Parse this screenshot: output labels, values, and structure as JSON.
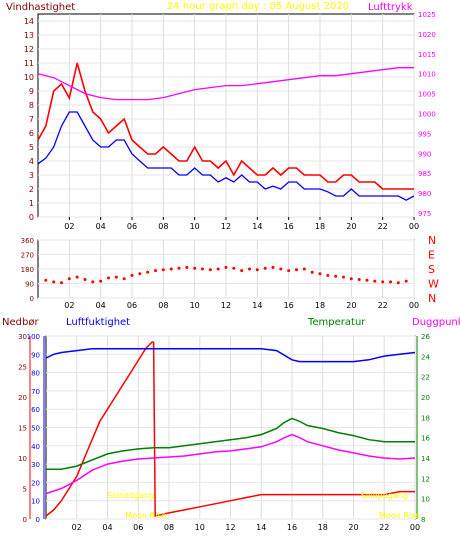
{
  "header": {
    "title": "24 hour graph day : 05 August 2020",
    "left_label": "Vindhastighet",
    "right_label": "Lufttrykk"
  },
  "colors": {
    "wind": "#ff0000",
    "pressure": "#ff00ff",
    "wind_avg": "#0000ff",
    "grid_bg": "#ffffff",
    "title": "#ffff00",
    "axis_left": "#800000",
    "direction": "#ff0000",
    "temperature": "#008000",
    "dewpoint": "#ff00ff",
    "humidity": "#0000ff",
    "rain": "#ff0000",
    "rain_axis": "#ff0000",
    "humidity_axis": "#0000ff",
    "temp_axis": "#008000",
    "annotation": "#ffff00"
  },
  "chart_data": [
    {
      "type": "line",
      "title": "24 hour graph day : 05 August 2020",
      "x_ticks": [
        "02",
        "04",
        "06",
        "08",
        "10",
        "12",
        "14",
        "16",
        "18",
        "20",
        "22",
        "00"
      ],
      "x_range_hours": [
        0,
        24
      ],
      "y_left": {
        "label": "Vindhastighet",
        "range": [
          0,
          14.5
        ],
        "ticks": [
          "0",
          "1",
          "2",
          "3",
          "4",
          "5",
          "6",
          "7",
          "8",
          "9",
          "10",
          "11",
          "12",
          "13",
          "14"
        ]
      },
      "y_right": {
        "label": "Lufttrykk",
        "range": [
          974,
          1025
        ],
        "ticks": [
          "975",
          "980",
          "985",
          "990",
          "995",
          "1000",
          "1005",
          "1010",
          "1015",
          "1020",
          "1025"
        ]
      },
      "series": [
        {
          "name": "Vindhastighet",
          "axis": "left",
          "x": [
            0,
            0.5,
            1,
            1.5,
            2,
            2.5,
            3,
            3.5,
            4,
            4.5,
            5,
            5.5,
            6,
            6.5,
            7,
            7.5,
            8,
            8.5,
            9,
            9.5,
            10,
            10.5,
            11,
            11.5,
            12,
            12.5,
            13,
            13.5,
            14,
            14.5,
            15,
            15.5,
            16,
            16.5,
            17,
            17.5,
            18,
            18.5,
            19,
            19.5,
            20,
            20.5,
            21,
            21.5,
            22,
            22.5,
            23,
            23.5,
            24
          ],
          "y": [
            5.5,
            6.5,
            9.0,
            9.5,
            8.5,
            11.0,
            9.0,
            7.5,
            7.0,
            6.0,
            6.5,
            7.0,
            5.5,
            5.0,
            4.5,
            4.5,
            5.0,
            4.5,
            4.0,
            4.0,
            5.0,
            4.0,
            4.0,
            3.5,
            4.0,
            3.0,
            4.0,
            3.5,
            3.0,
            3.0,
            3.5,
            3.0,
            3.5,
            3.5,
            3.0,
            3.0,
            3.0,
            2.5,
            2.5,
            3.0,
            3.0,
            2.5,
            2.5,
            2.5,
            2.0,
            2.0,
            2.0,
            2.0,
            2.0
          ]
        },
        {
          "name": "Average",
          "axis": "left",
          "x": [
            0,
            0.5,
            1,
            1.5,
            2,
            2.5,
            3,
            3.5,
            4,
            4.5,
            5,
            5.5,
            6,
            6.5,
            7,
            7.5,
            8,
            8.5,
            9,
            9.5,
            10,
            10.5,
            11,
            11.5,
            12,
            12.5,
            13,
            13.5,
            14,
            14.5,
            15,
            15.5,
            16,
            16.5,
            17,
            17.5,
            18,
            18.5,
            19,
            19.5,
            20,
            20.5,
            21,
            21.5,
            22,
            22.5,
            23,
            23.5,
            24
          ],
          "y": [
            3.8,
            4.2,
            5.0,
            6.5,
            7.5,
            7.5,
            6.5,
            5.5,
            5.0,
            5.0,
            5.5,
            5.5,
            4.5,
            4.0,
            3.5,
            3.5,
            3.5,
            3.5,
            3.0,
            3.0,
            3.5,
            3.0,
            3.0,
            2.5,
            2.8,
            2.5,
            3.0,
            2.5,
            2.5,
            2.0,
            2.2,
            2.0,
            2.5,
            2.5,
            2.0,
            2.0,
            2.0,
            1.8,
            1.5,
            1.5,
            2.0,
            1.5,
            1.5,
            1.5,
            1.5,
            1.5,
            1.5,
            1.2,
            1.5
          ]
        },
        {
          "name": "Lufttrykk",
          "axis": "right",
          "x": [
            0,
            1,
            2,
            3,
            4,
            5,
            6,
            7,
            8,
            9,
            10,
            11,
            12,
            13,
            14,
            15,
            16,
            17,
            18,
            19,
            20,
            21,
            22,
            23,
            24
          ],
          "y": [
            1010,
            1009,
            1007,
            1005,
            1004,
            1003.5,
            1003.5,
            1003.5,
            1004,
            1005,
            1006,
            1006.5,
            1007,
            1007,
            1007.5,
            1008,
            1008.5,
            1009,
            1009.5,
            1009.5,
            1010,
            1010.5,
            1011,
            1011.5,
            1011.5
          ]
        }
      ]
    },
    {
      "type": "scatter",
      "title": "",
      "x_ticks": [
        "02",
        "04",
        "06",
        "08",
        "10",
        "12",
        "14",
        "16",
        "18",
        "20",
        "22",
        "00"
      ],
      "y_left": {
        "range": [
          0,
          360
        ],
        "ticks": [
          "0",
          "90",
          "180",
          "270",
          "360"
        ]
      },
      "y_right_labels": [
        "N",
        "W",
        "S",
        "E",
        "N"
      ],
      "series": [
        {
          "name": "",
          "x": [
            0.5,
            1,
            1.5,
            2,
            2.5,
            3,
            3.5,
            4,
            4.5,
            5,
            5.5,
            6,
            6.5,
            7,
            7.5,
            8,
            8.5,
            9,
            9.5,
            10,
            10.5,
            11,
            11.5,
            12,
            12.5,
            13,
            13.5,
            14,
            14.5,
            15,
            15.5,
            16,
            16.5,
            17,
            17.5,
            18,
            18.5,
            19,
            19.5,
            20,
            20.5,
            21,
            21.5,
            22,
            22.5,
            23,
            23.5
          ],
          "y": [
            110,
            100,
            95,
            120,
            130,
            115,
            100,
            105,
            125,
            130,
            120,
            140,
            150,
            160,
            170,
            175,
            180,
            185,
            190,
            185,
            180,
            175,
            180,
            190,
            185,
            170,
            180,
            175,
            185,
            190,
            180,
            170,
            175,
            180,
            160,
            150,
            140,
            135,
            130,
            120,
            115,
            110,
            105,
            100,
            100,
            95,
            105
          ]
        }
      ]
    },
    {
      "type": "line",
      "title": "",
      "labels": {
        "rain": "Nedbør",
        "humidity": "Luftfuktighet",
        "temperature": "Temperatur",
        "dewpoint": "Duggpunkt"
      },
      "x_ticks": [
        "02",
        "04",
        "06",
        "08",
        "10",
        "12",
        "14",
        "16",
        "18",
        "20",
        "22",
        "00"
      ],
      "axes": {
        "rain": {
          "range": [
            0,
            30
          ],
          "ticks": [
            "0",
            "5",
            "10",
            "15",
            "20",
            "25",
            "30"
          ]
        },
        "humidity": {
          "range": [
            0,
            100
          ],
          "ticks": [
            "0",
            "10",
            "20",
            "30",
            "40",
            "50",
            "60",
            "70",
            "80",
            "90",
            "100"
          ]
        },
        "temperature": {
          "range": [
            8,
            26
          ],
          "ticks": [
            "8",
            "10",
            "12",
            "14",
            "16",
            "18",
            "20",
            "22",
            "24",
            "26"
          ]
        }
      },
      "annotations": [
        {
          "text": "Solnedgang",
          "x_hour": 5.5,
          "y_pos": "low"
        },
        {
          "text": "Soloppgang",
          "x_hour": 22.0,
          "y_pos": "low"
        },
        {
          "text": "Moon Rise",
          "x_hour": 6.5,
          "y_pos": "bottom"
        },
        {
          "text": "Moon Rise",
          "x_hour": 23.0,
          "y_pos": "bottom"
        }
      ],
      "series": [
        {
          "name": "Nedbør",
          "axis": "rain",
          "x": [
            0,
            0.5,
            1,
            1.5,
            2,
            2.5,
            3,
            3.5,
            4,
            4.5,
            5,
            5.5,
            6,
            6.5,
            6.9,
            7.0,
            7.1,
            8,
            9,
            10,
            11,
            12,
            13,
            14,
            14.1,
            15,
            16,
            17,
            18,
            19,
            20,
            21,
            22,
            23,
            23.5,
            24
          ],
          "y": [
            0.5,
            1.5,
            3,
            5,
            7,
            10,
            13,
            16,
            18,
            20,
            22,
            24,
            26,
            28,
            29,
            29,
            0.5,
            1,
            1.5,
            2,
            2.5,
            3,
            3.5,
            4,
            4,
            4,
            4,
            4,
            4,
            4,
            4,
            4,
            4,
            4.5,
            4.5,
            4.5
          ]
        },
        {
          "name": "Luftfuktighet",
          "axis": "humidity",
          "x": [
            0,
            0.5,
            1,
            2,
            3,
            4,
            5,
            6,
            7,
            8,
            9,
            10,
            11,
            12,
            13,
            14,
            15,
            16,
            16.5,
            17,
            18,
            19,
            20,
            21,
            22,
            23,
            24
          ],
          "y": [
            88,
            90,
            91,
            92,
            93,
            93,
            93,
            93,
            93,
            93,
            93,
            93,
            93,
            93,
            93,
            93,
            92,
            87,
            86,
            86,
            86,
            86,
            86,
            87,
            89,
            90,
            91
          ]
        },
        {
          "name": "Temperatur",
          "axis": "temperature",
          "x": [
            0,
            1,
            2,
            3,
            4,
            5,
            6,
            7,
            8,
            9,
            10,
            11,
            12,
            13,
            14,
            15,
            15.5,
            16,
            16.5,
            17,
            18,
            19,
            20,
            21,
            22,
            23,
            24
          ],
          "y": [
            12.9,
            12.9,
            13.2,
            13.8,
            14.4,
            14.7,
            14.9,
            15.0,
            15.0,
            15.2,
            15.4,
            15.6,
            15.8,
            16.0,
            16.3,
            16.9,
            17.5,
            17.9,
            17.6,
            17.2,
            16.9,
            16.5,
            16.2,
            15.8,
            15.6,
            15.6,
            15.6
          ]
        },
        {
          "name": "Duggpunkt",
          "axis": "temperature",
          "x": [
            0,
            1,
            2,
            3,
            4,
            5,
            6,
            7,
            8,
            9,
            10,
            11,
            12,
            13,
            14,
            15,
            15.5,
            16,
            16.5,
            17,
            18,
            19,
            20,
            21,
            22,
            23,
            24
          ],
          "y": [
            10.5,
            11.0,
            11.8,
            12.8,
            13.4,
            13.7,
            13.9,
            14.0,
            14.1,
            14.2,
            14.4,
            14.6,
            14.7,
            14.9,
            15.1,
            15.6,
            16.0,
            16.3,
            16.0,
            15.6,
            15.2,
            14.8,
            14.5,
            14.2,
            14.0,
            13.9,
            14.0
          ]
        }
      ]
    }
  ]
}
